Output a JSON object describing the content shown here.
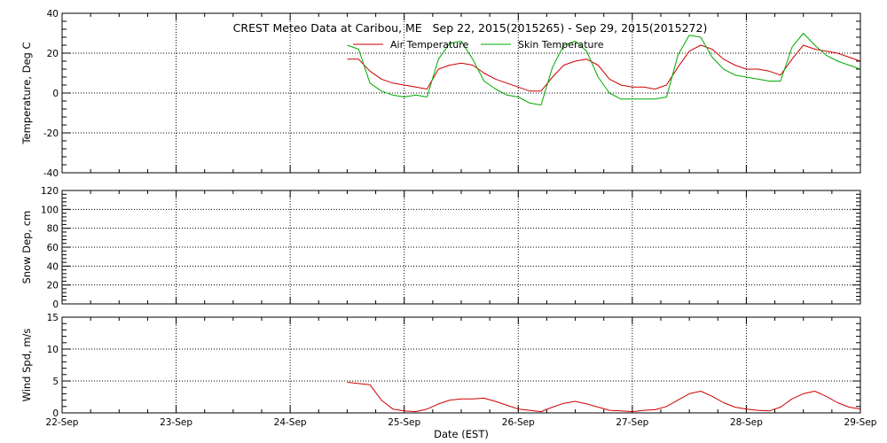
{
  "chart_data": {
    "title": "CREST Meteo Data at Caribou, ME   Sep 22, 2015(2015265) - Sep 29, 2015(2015272)",
    "xlabel": "Date (EST)",
    "x_ticks": [
      "22-Sep",
      "23-Sep",
      "24-Sep",
      "25-Sep",
      "26-Sep",
      "27-Sep",
      "28-Sep",
      "29-Sep"
    ],
    "xlim_days": [
      22,
      29
    ],
    "grid": true,
    "panels": [
      {
        "type": "line",
        "ylabel": "Temperature, Deg C",
        "ylim": [
          -40,
          40
        ],
        "yticks": [
          -40,
          -20,
          0,
          20,
          40
        ],
        "legend": "top-center",
        "series": [
          {
            "name": "Air Temperature",
            "color": "#cc0000",
            "x": [
              24.5,
              24.6,
              24.7,
              24.8,
              24.9,
              25.0,
              25.1,
              25.2,
              25.3,
              25.4,
              25.5,
              25.6,
              25.7,
              25.8,
              25.9,
              26.0,
              26.1,
              26.2,
              26.3,
              26.4,
              26.5,
              26.6,
              26.7,
              26.8,
              26.9,
              27.0,
              27.1,
              27.2,
              27.3,
              27.4,
              27.5,
              27.6,
              27.7,
              27.8,
              27.9,
              28.0,
              28.1,
              28.2,
              28.3,
              28.4,
              28.5,
              28.6,
              28.7,
              28.8,
              28.9,
              29.0
            ],
            "y": [
              17,
              17,
              11,
              7,
              5,
              4,
              3,
              2,
              12,
              14,
              15,
              14,
              10,
              7,
              5,
              3,
              1,
              1,
              8,
              14,
              16,
              17,
              14,
              7,
              4,
              3,
              3,
              2,
              4,
              13,
              21,
              24,
              22,
              17,
              14,
              12,
              12,
              11,
              9,
              17,
              24,
              22,
              21,
              20,
              18,
              16
            ]
          },
          {
            "name": "Skin Temperature",
            "color": "#00aa00",
            "x": [
              24.5,
              24.6,
              24.7,
              24.8,
              24.9,
              25.0,
              25.1,
              25.2,
              25.3,
              25.4,
              25.5,
              25.6,
              25.7,
              25.8,
              25.9,
              26.0,
              26.1,
              26.2,
              26.3,
              26.4,
              26.5,
              26.6,
              26.7,
              26.8,
              26.9,
              27.0,
              27.1,
              27.2,
              27.3,
              27.4,
              27.5,
              27.6,
              27.7,
              27.8,
              27.9,
              28.0,
              28.1,
              28.2,
              28.3,
              28.4,
              28.5,
              28.6,
              28.7,
              28.8,
              28.9,
              29.0
            ],
            "y": [
              24,
              22,
              5,
              1,
              -1,
              -2,
              -1,
              -2,
              17,
              25,
              26,
              17,
              6,
              2,
              -1,
              -2,
              -5,
              -6,
              13,
              24,
              26,
              21,
              8,
              0,
              -3,
              -3,
              -3,
              -3,
              -2,
              19,
              29,
              28,
              18,
              12,
              9,
              8,
              7,
              6,
              6,
              23,
              30,
              24,
              19,
              16,
              14,
              12
            ]
          }
        ]
      },
      {
        "type": "line",
        "ylabel": "Snow Dep, cm",
        "ylim": [
          0,
          120
        ],
        "yticks": [
          0,
          20,
          40,
          60,
          80,
          100,
          120
        ],
        "series": []
      },
      {
        "type": "line",
        "ylabel": "Wind Spd, m/s",
        "ylim": [
          0,
          15
        ],
        "yticks": [
          0,
          5,
          10,
          15
        ],
        "series": [
          {
            "name": "",
            "color": "#cc0000",
            "x": [
              24.5,
              24.6,
              24.7,
              24.8,
              24.9,
              25.0,
              25.1,
              25.2,
              25.3,
              25.4,
              25.5,
              25.6,
              25.7,
              25.8,
              25.9,
              26.0,
              26.1,
              26.2,
              26.3,
              26.4,
              26.5,
              26.6,
              26.7,
              26.8,
              26.9,
              27.0,
              27.1,
              27.2,
              27.3,
              27.4,
              27.5,
              27.6,
              27.7,
              27.8,
              27.9,
              28.0,
              28.1,
              28.2,
              28.3,
              28.4,
              28.5,
              28.6,
              28.7,
              28.8,
              28.9,
              29.0
            ],
            "y": [
              4.8,
              4.6,
              4.4,
              2.0,
              0.6,
              0.3,
              0.2,
              0.6,
              1.4,
              2.0,
              2.2,
              2.2,
              2.3,
              1.8,
              1.2,
              0.6,
              0.4,
              0.2,
              0.9,
              1.5,
              1.8,
              1.4,
              0.9,
              0.4,
              0.3,
              0.2,
              0.4,
              0.5,
              1.0,
              2.0,
              3.0,
              3.4,
              2.6,
              1.6,
              0.9,
              0.6,
              0.4,
              0.3,
              0.9,
              2.2,
              3.0,
              3.4,
              2.6,
              1.6,
              0.9,
              0.6
            ]
          }
        ]
      }
    ]
  }
}
